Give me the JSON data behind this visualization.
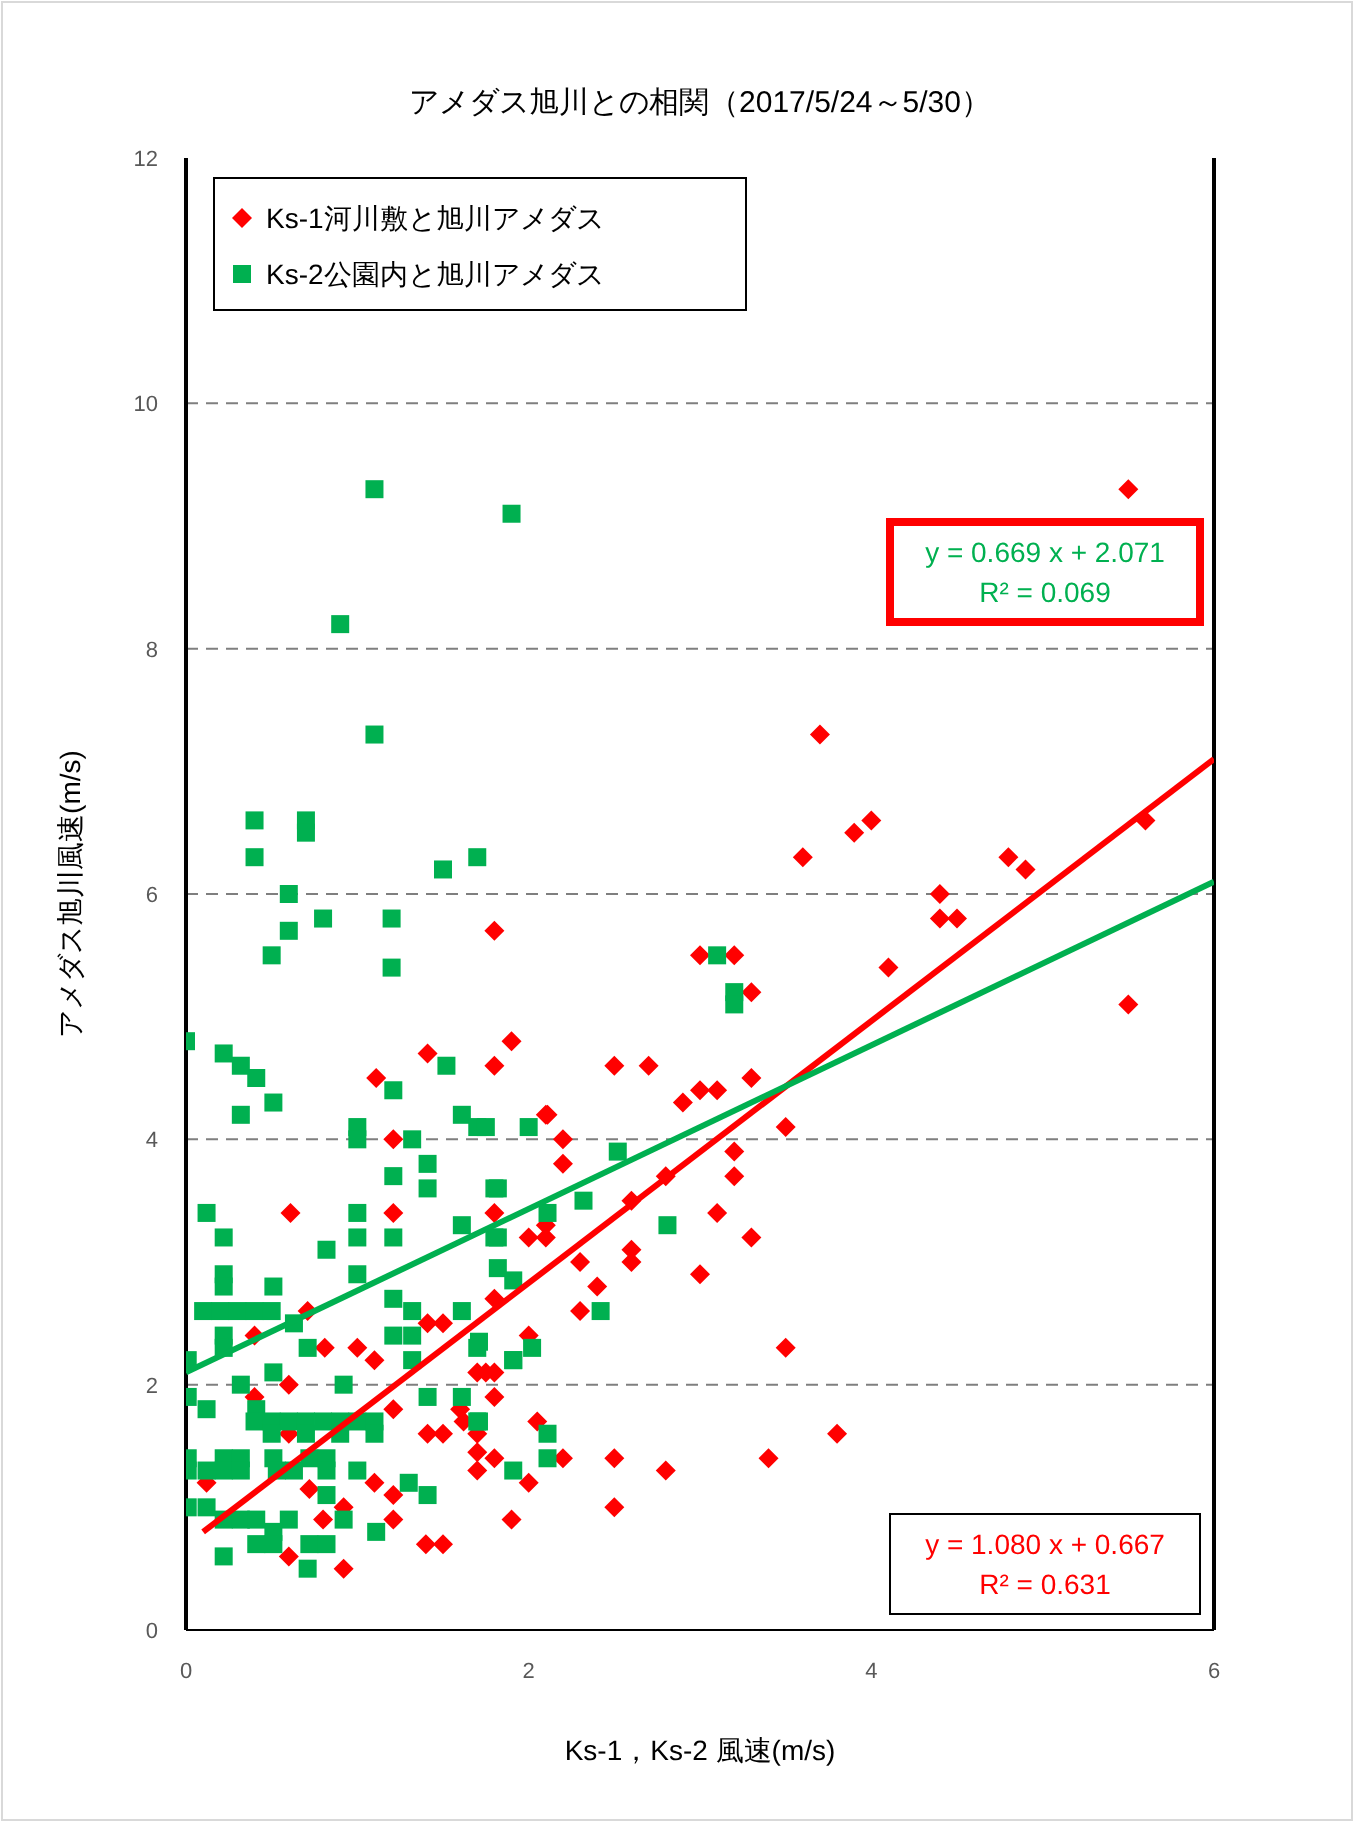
{
  "chart_data": {
    "type": "scatter",
    "title": "アメダス旭川との相関（2017/5/24～5/30）",
    "xlabel": "Ks-1，Ks-2 風速(m/s)",
    "ylabel": "アメダス旭川風速(m/s)",
    "xlim": [
      0,
      6
    ],
    "xticks": [
      0,
      2,
      4,
      6
    ],
    "ylim": [
      0,
      12
    ],
    "yticks": [
      0,
      2,
      4,
      6,
      8,
      10,
      12
    ],
    "grid": "y",
    "legend": "top left",
    "series": [
      {
        "name": "Ks-1河川敷と旭川アメダス",
        "color": "#ff0000",
        "marker": "diamond",
        "x": [
          5.5,
          5.6,
          5.5,
          3.7,
          3.9,
          4.0,
          3.6,
          4.1,
          4.4,
          4.4,
          4.5,
          4.8,
          4.9,
          3.0,
          3.2,
          3.3,
          3.3,
          3.1,
          2.9,
          3.0,
          2.7,
          2.5,
          1.8,
          1.9,
          1.41,
          1.11,
          3.2,
          3.2,
          3.3,
          3.1,
          3.0,
          3.5,
          3.5,
          2.8,
          2.6,
          2.6,
          2.6,
          2.3,
          2.4,
          2.3,
          2.1,
          2.1,
          2.2,
          2.2,
          2.1,
          2.11,
          1.8,
          1.8,
          2.0,
          1.8,
          2.0,
          1.75,
          1.8,
          1.6,
          1.7,
          2.05,
          2.2,
          2.0,
          1.9,
          2.5,
          2.5,
          2.8,
          3.4,
          3.8,
          0.61,
          1.21,
          1.8,
          1.21,
          0.71,
          0.4,
          0.81,
          1.0,
          1.1,
          0.6,
          0.4,
          1.41,
          1.5,
          1.7,
          1.41,
          1.5,
          1.62,
          1.7,
          1.8,
          1.7,
          1.21,
          1.1,
          1.21,
          1.21,
          0.92,
          0.8,
          0.6,
          0.92,
          1.4,
          1.5,
          0.12,
          0.6,
          0.72
        ],
        "values": [
          9.3,
          6.6,
          5.1,
          7.3,
          6.5,
          6.6,
          6.3,
          5.4,
          5.8,
          6.0,
          5.8,
          6.3,
          6.2,
          5.5,
          5.5,
          5.2,
          4.5,
          4.4,
          4.3,
          4.4,
          4.6,
          4.6,
          5.7,
          4.8,
          4.7,
          4.5,
          3.9,
          3.7,
          3.2,
          3.4,
          2.9,
          4.1,
          2.3,
          3.7,
          3.5,
          3.1,
          3.0,
          3.0,
          2.8,
          2.6,
          3.2,
          3.3,
          3.8,
          4.0,
          4.2,
          4.2,
          3.4,
          2.7,
          2.4,
          2.1,
          3.2,
          2.1,
          1.9,
          1.8,
          1.45,
          1.7,
          1.4,
          1.2,
          0.9,
          1.4,
          1.0,
          1.3,
          1.4,
          1.6,
          3.4,
          4.0,
          4.6,
          3.4,
          2.6,
          2.4,
          2.3,
          2.3,
          2.2,
          2.0,
          1.9,
          2.5,
          2.5,
          2.1,
          1.6,
          1.6,
          1.7,
          1.6,
          1.4,
          1.3,
          1.8,
          1.2,
          1.1,
          0.9,
          1.0,
          0.9,
          0.6,
          0.5,
          0.7,
          0.7,
          1.2,
          1.6,
          1.15
        ]
      },
      {
        "name": "Ks-2公園内と旭川アメダス",
        "color": "#00b050",
        "marker": "square",
        "x": [
          1.1,
          1.9,
          0.9,
          1.1,
          0.4,
          0.7,
          0.7,
          0.4,
          0.6,
          0.6,
          1.5,
          1.7,
          0.8,
          1.2,
          1.2,
          0.5,
          3.1,
          3.2,
          3.2,
          0.0,
          0.22,
          0.32,
          0.41,
          0.51,
          0.32,
          1.0,
          1.0,
          1.32,
          1.21,
          1.61,
          1.7,
          1.52,
          1.41,
          1.41,
          1.21,
          1.8,
          0.12,
          1.0,
          1.0,
          0.22,
          0.82,
          1.21,
          1.61,
          1.8,
          1.0,
          0.22,
          0.22,
          0.51,
          1.21,
          1.32,
          1.61,
          0.1,
          0.2,
          0.3,
          0.4,
          0.5,
          0.63,
          0.22,
          0.22,
          0.71,
          1.21,
          1.32,
          1.32,
          1.7,
          1.91,
          0.01,
          0.51,
          0.32,
          0.92,
          0.01,
          0.12,
          0.41,
          1.41,
          1.61,
          1.7,
          0.4,
          0.5,
          0.6,
          0.7,
          0.8,
          0.9,
          1.0,
          1.1,
          0.5,
          0.7,
          0.9,
          1.1,
          0.01,
          0.22,
          0.32,
          0.51,
          0.72,
          0.82,
          0.01,
          0.12,
          0.22,
          0.32,
          0.53,
          0.63,
          0.82,
          1.0,
          1.3,
          1.41,
          0.01,
          0.12,
          0.22,
          0.32,
          0.41,
          0.6,
          0.82,
          0.92,
          0.51,
          0.41,
          0.51,
          0.72,
          0.82,
          1.11,
          0.22,
          0.71,
          1.75,
          2.0,
          2.52,
          1.82,
          2.32,
          2.11,
          2.81,
          1.82,
          1.82,
          1.91,
          2.42,
          1.71,
          2.02,
          1.91,
          1.71,
          2.11,
          2.11,
          1.91
        ],
        "values": [
          9.3,
          9.1,
          8.2,
          7.3,
          6.6,
          6.6,
          6.5,
          6.3,
          6.0,
          5.7,
          6.2,
          6.3,
          5.8,
          5.8,
          5.4,
          5.5,
          5.5,
          5.2,
          5.1,
          4.8,
          4.7,
          4.6,
          4.5,
          4.3,
          4.2,
          4.1,
          4.0,
          4.0,
          4.4,
          4.2,
          4.1,
          4.6,
          3.8,
          3.6,
          3.7,
          3.6,
          3.4,
          3.4,
          3.2,
          3.2,
          3.1,
          3.2,
          3.3,
          3.2,
          2.9,
          2.9,
          2.8,
          2.8,
          2.7,
          2.6,
          2.6,
          2.6,
          2.6,
          2.6,
          2.6,
          2.6,
          2.5,
          2.4,
          2.3,
          2.3,
          2.4,
          2.4,
          2.2,
          2.3,
          2.2,
          2.2,
          2.1,
          2.0,
          2.0,
          1.9,
          1.8,
          1.8,
          1.9,
          1.9,
          1.7,
          1.7,
          1.7,
          1.7,
          1.7,
          1.7,
          1.7,
          1.7,
          1.7,
          1.6,
          1.6,
          1.6,
          1.6,
          1.4,
          1.4,
          1.4,
          1.4,
          1.4,
          1.4,
          1.3,
          1.3,
          1.3,
          1.3,
          1.3,
          1.3,
          1.3,
          1.3,
          1.2,
          1.1,
          1.0,
          1.0,
          0.9,
          0.9,
          0.9,
          0.9,
          1.1,
          0.9,
          0.8,
          0.7,
          0.7,
          0.7,
          0.7,
          0.8,
          0.6,
          0.5,
          4.1,
          4.1,
          3.9,
          3.6,
          3.5,
          3.4,
          3.3,
          3.2,
          2.95,
          2.85,
          2.6,
          2.35,
          2.3,
          2.2,
          1.7,
          1.6,
          1.4,
          1.3
        ]
      },
      {
        "type": "line",
        "color": "#ff0000",
        "x": [
          0.1,
          6
        ],
        "values": [
          0.8,
          7.1
        ]
      },
      {
        "type": "line",
        "color": "#00b050",
        "x": [
          0,
          6
        ],
        "values": [
          2.1,
          6.1
        ]
      }
    ],
    "annotations": [
      "y = 1.080 x + 0.667\nR² = 0.631",
      "y = 0.669 x + 2.071\nR² = 0.069"
    ]
  }
}
